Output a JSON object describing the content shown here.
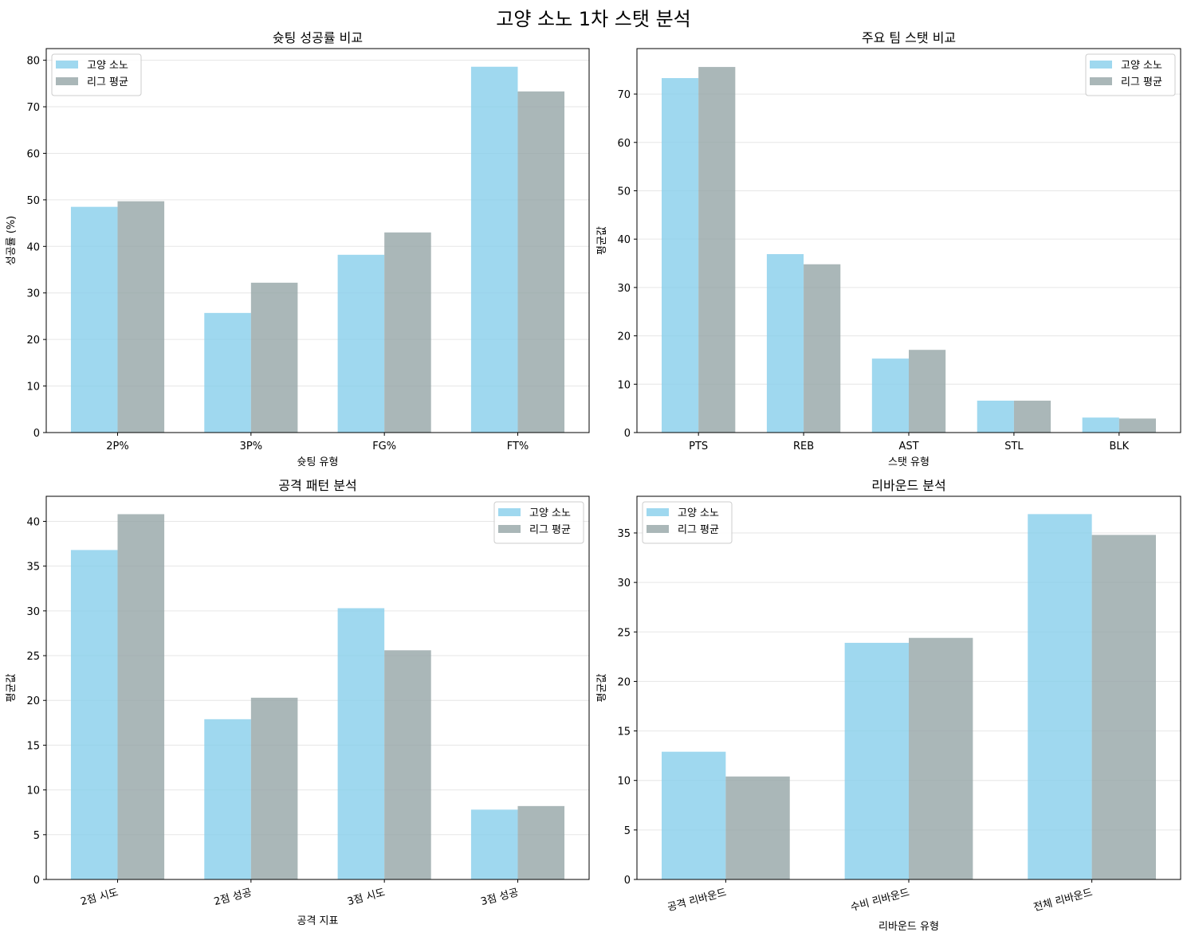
{
  "suptitle": "고양 소노 1차 스탯 분석",
  "colors": {
    "team": "#87CEEB",
    "league": "#95A5A6",
    "grid": "#e6e6e6"
  },
  "chart_data": [
    {
      "type": "bar",
      "title": "슛팅 성공률 비교",
      "xlabel": "슛팅 유형",
      "ylabel": "성공률 (%)",
      "categories": [
        "2P%",
        "3P%",
        "FG%",
        "FT%"
      ],
      "series": [
        {
          "name": "고양 소노",
          "values": [
            48.5,
            25.7,
            38.2,
            78.6
          ]
        },
        {
          "name": "리그 평균",
          "values": [
            49.7,
            32.2,
            43.0,
            73.3
          ]
        }
      ],
      "ylim": [
        0,
        82.5
      ],
      "yticks": [
        0,
        10,
        20,
        30,
        40,
        50,
        60,
        70,
        80
      ],
      "legend": "upper-left",
      "grid": "y",
      "rotate_xticks": false
    },
    {
      "type": "bar",
      "title": "주요 팀 스탯 비교",
      "xlabel": "스탯 유형",
      "ylabel": "평균값",
      "categories": [
        "PTS",
        "REB",
        "AST",
        "STL",
        "BLK"
      ],
      "series": [
        {
          "name": "고양 소노",
          "values": [
            73.3,
            36.9,
            15.3,
            6.6,
            3.1
          ]
        },
        {
          "name": "리그 평균",
          "values": [
            75.6,
            34.8,
            17.1,
            6.6,
            2.9
          ]
        }
      ],
      "ylim": [
        0,
        79.4
      ],
      "yticks": [
        0,
        10,
        20,
        30,
        40,
        50,
        60,
        70
      ],
      "legend": "upper-right",
      "grid": "y",
      "rotate_xticks": false
    },
    {
      "type": "bar",
      "title": "공격 패턴 분석",
      "xlabel": "공격 지표",
      "ylabel": "평균값",
      "categories": [
        "2점 시도",
        "2점 성공",
        "3점 시도",
        "3점 성공"
      ],
      "series": [
        {
          "name": "고양 소노",
          "values": [
            36.8,
            17.9,
            30.3,
            7.8
          ]
        },
        {
          "name": "리그 평균",
          "values": [
            40.8,
            20.3,
            25.6,
            8.2
          ]
        }
      ],
      "ylim": [
        0,
        42.8
      ],
      "yticks": [
        0,
        5,
        10,
        15,
        20,
        25,
        30,
        35,
        40
      ],
      "legend": "upper-right",
      "grid": "y",
      "rotate_xticks": true
    },
    {
      "type": "bar",
      "title": "리바운드 분석",
      "xlabel": "리바운드 유형",
      "ylabel": "평균값",
      "categories": [
        "공격 리바운드",
        "수비 리바운드",
        "전체 리바운드"
      ],
      "series": [
        {
          "name": "고양 소노",
          "values": [
            12.9,
            23.9,
            36.9
          ]
        },
        {
          "name": "리그 평균",
          "values": [
            10.4,
            24.4,
            34.8
          ]
        }
      ],
      "ylim": [
        0,
        38.7
      ],
      "yticks": [
        0,
        5,
        10,
        15,
        20,
        25,
        30,
        35
      ],
      "legend": "upper-left",
      "grid": "y",
      "rotate_xticks": true
    }
  ]
}
